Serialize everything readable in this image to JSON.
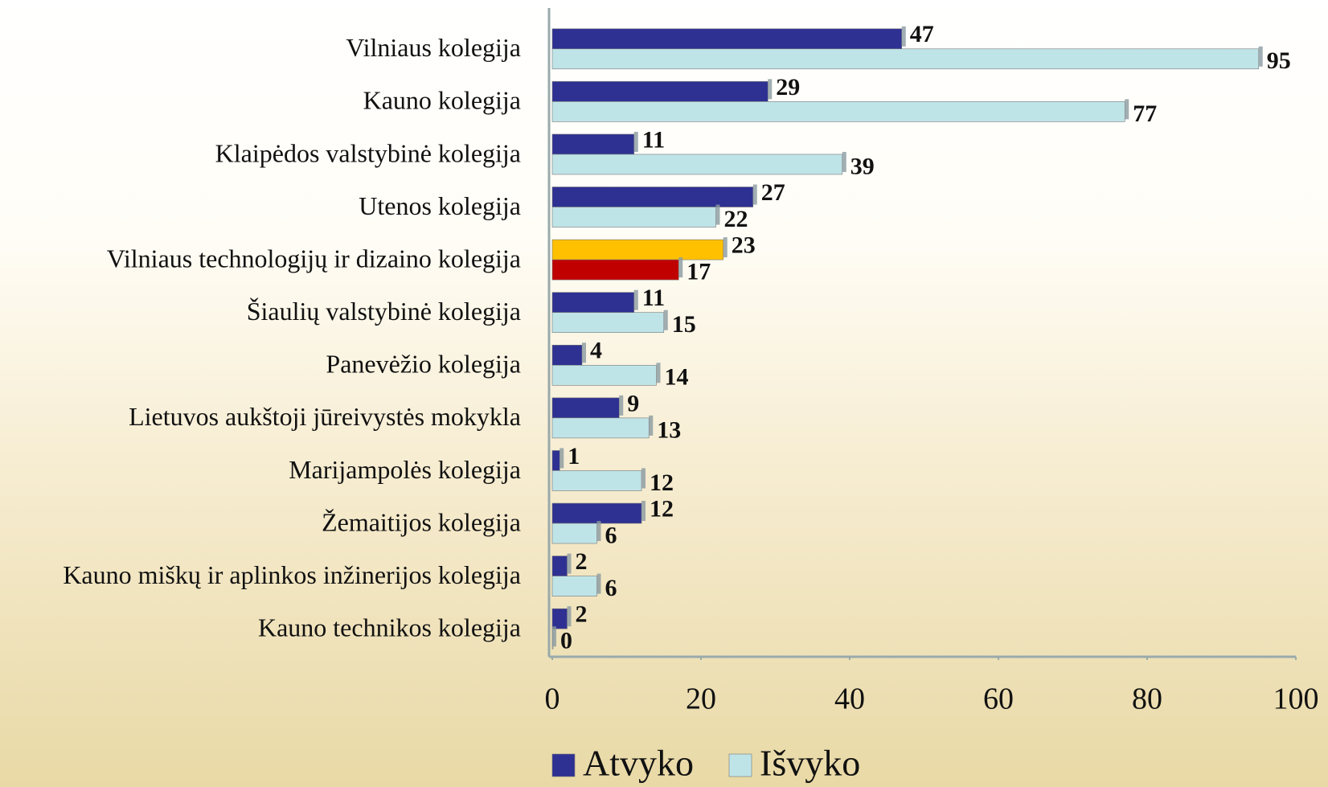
{
  "chart_data": {
    "type": "hbar",
    "categories": [
      "Vilniaus kolegija",
      "Kauno kolegija",
      "Klaipėdos valstybinė kolegija",
      "Utenos kolegija",
      "Vilniaus technologijų ir dizaino kolegija",
      "Šiaulių valstybinė kolegija",
      "Panevėžio kolegija",
      "Lietuvos aukštoji jūreivystės mokykla",
      "Marijampolės kolegija",
      "Žemaitijos kolegija",
      "Kauno miškų ir aplinkos inžinerijos kolegija",
      "Kauno technikos kolegija"
    ],
    "series": [
      {
        "name": "Atvyko",
        "color": "#2e3192",
        "values": [
          47,
          29,
          11,
          27,
          23,
          11,
          4,
          9,
          1,
          12,
          2,
          2
        ],
        "colors": [
          "#2e3192",
          "#2e3192",
          "#2e3192",
          "#2e3192",
          "#ffc000",
          "#2e3192",
          "#2e3192",
          "#2e3192",
          "#2e3192",
          "#2e3192",
          "#2e3192",
          "#2e3192"
        ]
      },
      {
        "name": "Išvyko",
        "color": "#bfe4e8",
        "values": [
          95,
          77,
          39,
          22,
          17,
          15,
          14,
          13,
          12,
          6,
          6,
          0
        ],
        "colors": [
          "#bfe4e8",
          "#bfe4e8",
          "#bfe4e8",
          "#bfe4e8",
          "#c00000",
          "#bfe4e8",
          "#bfe4e8",
          "#bfe4e8",
          "#bfe4e8",
          "#bfe4e8",
          "#bfe4e8",
          "#bfe4e8"
        ]
      }
    ],
    "xlim": [
      0,
      100
    ],
    "xticks": [
      0,
      20,
      40,
      60,
      80,
      100
    ],
    "legend": "bottom"
  }
}
